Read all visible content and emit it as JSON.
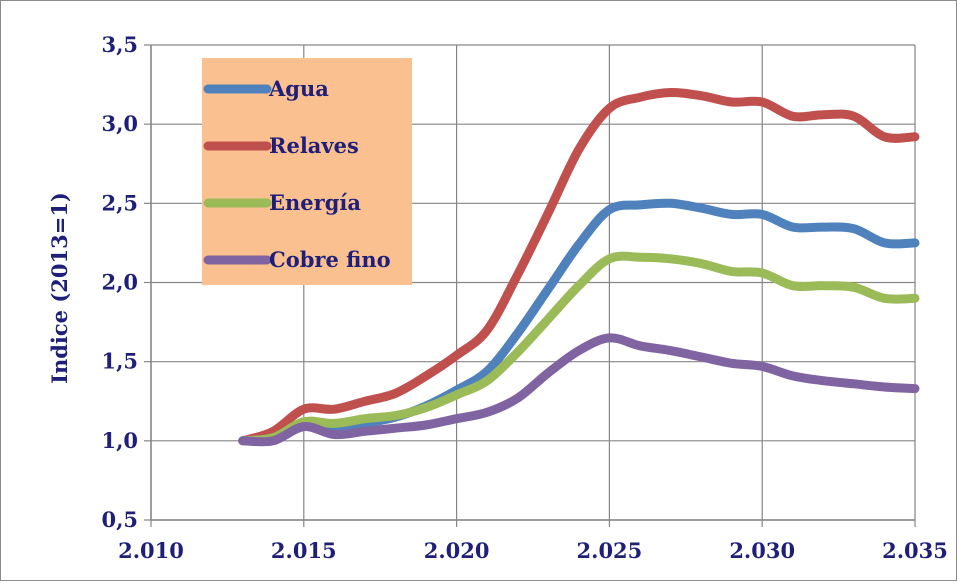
{
  "chart_data": {
    "type": "line",
    "title": "",
    "xlabel": "",
    "ylabel": "Indice (2013=1)",
    "xlim": [
      2010,
      2035
    ],
    "ylim": [
      0.5,
      3.5
    ],
    "x_ticks": [
      2010,
      2015,
      2020,
      2025,
      2030,
      2035
    ],
    "x_tick_labels": [
      "2.010",
      "2.015",
      "2.020",
      "2.025",
      "2.030",
      "2.035"
    ],
    "y_ticks": [
      0.5,
      1.0,
      1.5,
      2.0,
      2.5,
      3.0,
      3.5
    ],
    "y_tick_labels": [
      "0,5",
      "1,0",
      "1,5",
      "2,0",
      "2,5",
      "3,0",
      "3,5"
    ],
    "grid": "both",
    "legend_position": "top-left",
    "legend_background": "#fac090",
    "axis_text_color": "#1f1f7a",
    "x": [
      2013,
      2014,
      2015,
      2016,
      2017,
      2018,
      2019,
      2020,
      2021,
      2022,
      2023,
      2024,
      2025,
      2026,
      2027,
      2028,
      2029,
      2030,
      2031,
      2032,
      2033,
      2034,
      2035
    ],
    "series": [
      {
        "name": "Agua",
        "color": "#4f81bd",
        "values": [
          1.0,
          1.02,
          1.1,
          1.08,
          1.11,
          1.15,
          1.22,
          1.32,
          1.44,
          1.68,
          1.96,
          2.24,
          2.46,
          2.49,
          2.5,
          2.47,
          2.43,
          2.43,
          2.35,
          2.35,
          2.34,
          2.25,
          2.25
        ]
      },
      {
        "name": "Relaves",
        "color": "#c0504d",
        "values": [
          1.0,
          1.06,
          1.2,
          1.2,
          1.25,
          1.3,
          1.41,
          1.54,
          1.7,
          2.05,
          2.44,
          2.84,
          3.1,
          3.17,
          3.2,
          3.18,
          3.14,
          3.14,
          3.05,
          3.06,
          3.05,
          2.92,
          2.92
        ]
      },
      {
        "name": "Energía",
        "color": "#9bbb59",
        "values": [
          1.0,
          1.02,
          1.12,
          1.11,
          1.14,
          1.16,
          1.21,
          1.29,
          1.38,
          1.56,
          1.77,
          1.98,
          2.15,
          2.16,
          2.15,
          2.12,
          2.07,
          2.06,
          1.98,
          1.98,
          1.97,
          1.9,
          1.9
        ]
      },
      {
        "name": "Cobre fino",
        "color": "#8064a2",
        "values": [
          1.0,
          1.0,
          1.09,
          1.04,
          1.06,
          1.08,
          1.1,
          1.14,
          1.18,
          1.27,
          1.43,
          1.57,
          1.65,
          1.6,
          1.57,
          1.53,
          1.49,
          1.47,
          1.41,
          1.38,
          1.36,
          1.34,
          1.33
        ]
      }
    ]
  }
}
